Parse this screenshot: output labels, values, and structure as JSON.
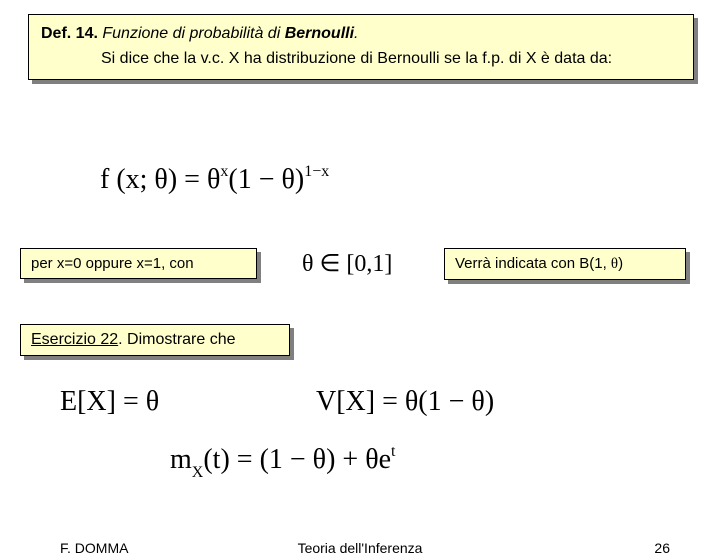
{
  "definition": {
    "label_prefix": "Def. 14.",
    "title_italic": " Funzione di probabilità di ",
    "title_bold_italic": "Bernoulli",
    "title_suffix": ".",
    "body": "Si dice che la v.c. X ha distribuzione di Bernoulli se la f.p. di X è data da:"
  },
  "equations": {
    "main": "f (x; θ) = θ",
    "main_sup1": "x",
    "main_mid": "(1 − θ)",
    "main_sup2": "1−x",
    "theta_domain": "θ ∈ [0,1]",
    "ex_e": "E[X] = θ",
    "ex_v": "V[X] = θ(1 − θ)",
    "ex_m_pre": "m",
    "ex_m_sub": "X",
    "ex_m_mid": "(t) = (1 − θ) + θe",
    "ex_m_sup": "t"
  },
  "condition_box": {
    "text": "per x=0 oppure x=1, con"
  },
  "notation_box": {
    "prefix": "Verrà indicata con B(1, ",
    "theta": "θ",
    "suffix": ")"
  },
  "exercise": {
    "label": "Esercizio 22",
    "text": ". Dimostrare che"
  },
  "footer": {
    "author": "F. DOMMA",
    "title": "Teoria dell'Inferenza",
    "page": "26"
  },
  "colors": {
    "box_bg": "#ffffcc",
    "box_border": "#000000",
    "shadow": "#808080",
    "background": "#ffffff"
  },
  "typography": {
    "body_font": "Arial",
    "math_font": "Times New Roman",
    "def_fontsize": 16,
    "eq_fontsize": 28,
    "footer_fontsize": 14
  }
}
